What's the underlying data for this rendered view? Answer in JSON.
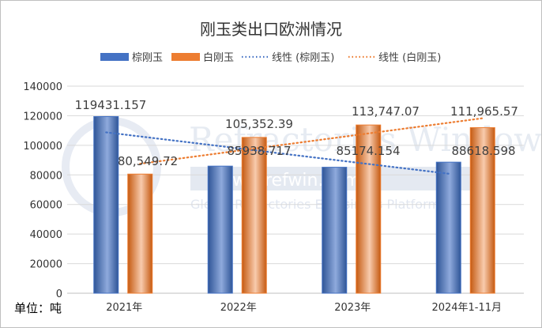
{
  "chart_data": {
    "type": "bar",
    "title": "刚玉类出口欧洲情况",
    "unit_label": "单位：吨",
    "categories": [
      "2021年",
      "2022年",
      "2023年",
      "2024年1-11月"
    ],
    "series": [
      {
        "name": "棕刚玉",
        "values": [
          119431.157,
          85938.717,
          85174.154,
          88618.598
        ],
        "labels": [
          "119431.157",
          "85938.717",
          "85174.154",
          "88618.598"
        ],
        "color": "#4472c4"
      },
      {
        "name": "白刚玉",
        "values": [
          80549.72,
          105352.39,
          113747.07,
          111965.57
        ],
        "labels": [
          "80,549.72",
          "105,352.39",
          "113,747.07",
          "111,965.57"
        ],
        "color": "#ed7d31"
      }
    ],
    "trendlines": [
      {
        "name": "线性 (棕刚玉)",
        "series": 0,
        "style": "dotted",
        "color": "#4472c4"
      },
      {
        "name": "线性 (白刚玉)",
        "series": 1,
        "style": "dotted",
        "color": "#ed7d31"
      }
    ],
    "yticks": [
      "0",
      "20000",
      "40000",
      "60000",
      "80000",
      "100000",
      "120000",
      "140000"
    ],
    "ylim": [
      0,
      140000
    ],
    "grid": true,
    "legend_position": "top"
  },
  "watermark": {
    "main": "Refractories Window",
    "url": "www.refwin.com",
    "tagline": "Global Refractories E-Business Platform"
  }
}
